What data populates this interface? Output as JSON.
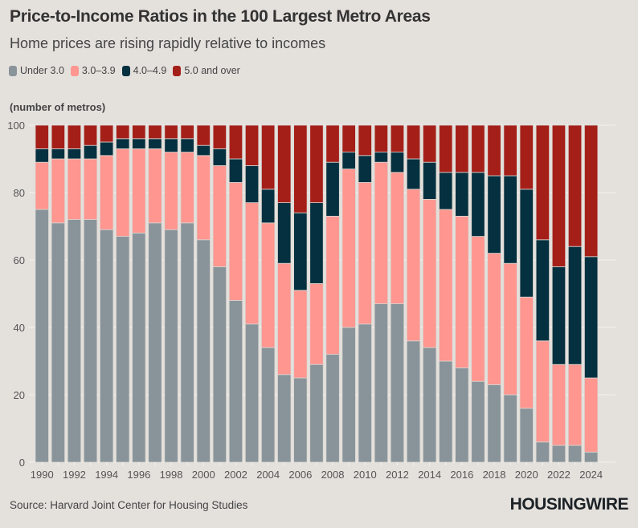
{
  "header": {
    "title": "Price-to-Income Ratios in the 100 Largest Metro Areas",
    "subtitle": "Home prices are rising rapidly relative to incomes",
    "units_label": "(number of metros)"
  },
  "footer": {
    "source": "Source: Harvard Joint Center for Housing Studies",
    "logo": "HOUSINGWIRE"
  },
  "colors": {
    "background": "#e4e1dd",
    "under_3": "#89949a",
    "r3_to_3_9": "#ff9690",
    "r4_to_4_9": "#05303f",
    "r5_plus": "#a51f19",
    "grid": "#f3f1ee"
  },
  "chart_data": {
    "type": "bar",
    "stacked": true,
    "title": "Price-to-Income Ratios in the 100 Largest Metro Areas",
    "subtitle": "Home prices are rising rapidly relative to incomes",
    "xlabel": "",
    "ylabel": "(number of metros)",
    "ylim": [
      0,
      100
    ],
    "yticks": [
      0,
      20,
      40,
      60,
      80,
      100
    ],
    "xtick_labels": [
      "1990",
      "1992",
      "1994",
      "1996",
      "1998",
      "2000",
      "2002",
      "2004",
      "2006",
      "2008",
      "2010",
      "2012",
      "2014",
      "2016",
      "2018",
      "2020",
      "2022",
      "2024"
    ],
    "grid": true,
    "legend_position": "top-left",
    "categories": [
      "1990",
      "1991",
      "1992",
      "1993",
      "1994",
      "1995",
      "1996",
      "1997",
      "1998",
      "1999",
      "2000",
      "2001",
      "2002",
      "2003",
      "2004",
      "2005",
      "2006",
      "2007",
      "2008",
      "2009",
      "2010",
      "2011",
      "2012",
      "2013",
      "2014",
      "2015",
      "2016",
      "2017",
      "2018",
      "2019",
      "2020",
      "2021",
      "2022",
      "2023",
      "2024"
    ],
    "series": [
      {
        "name": "Under 3.0",
        "color": "#89949a",
        "values": [
          75,
          71,
          72,
          72,
          69,
          67,
          68,
          71,
          69,
          71,
          66,
          58,
          48,
          41,
          34,
          26,
          25,
          29,
          32,
          40,
          41,
          47,
          47,
          36,
          34,
          30,
          28,
          24,
          23,
          20,
          16,
          6,
          5,
          5,
          3
        ]
      },
      {
        "name": "3.0–3.9",
        "color": "#ff9690",
        "values": [
          14,
          19,
          18,
          18,
          22,
          26,
          25,
          22,
          23,
          21,
          25,
          30,
          35,
          36,
          37,
          33,
          26,
          24,
          41,
          47,
          42,
          42,
          39,
          45,
          44,
          45,
          45,
          43,
          39,
          39,
          33,
          30,
          24,
          24,
          22
        ]
      },
      {
        "name": "4.0–4.9",
        "color": "#05303f",
        "values": [
          4,
          3,
          3,
          4,
          4,
          3,
          3,
          3,
          4,
          4,
          3,
          5,
          7,
          11,
          10,
          18,
          23,
          24,
          16,
          5,
          8,
          3,
          6,
          9,
          11,
          11,
          13,
          19,
          23,
          26,
          32,
          30,
          29,
          35,
          36
        ]
      },
      {
        "name": "5.0 and over",
        "color": "#a51f19",
        "values": [
          7,
          7,
          7,
          6,
          5,
          4,
          4,
          4,
          4,
          4,
          6,
          7,
          10,
          12,
          19,
          23,
          26,
          23,
          11,
          8,
          9,
          8,
          8,
          10,
          11,
          14,
          14,
          14,
          15,
          15,
          19,
          34,
          42,
          36,
          39
        ]
      }
    ]
  }
}
